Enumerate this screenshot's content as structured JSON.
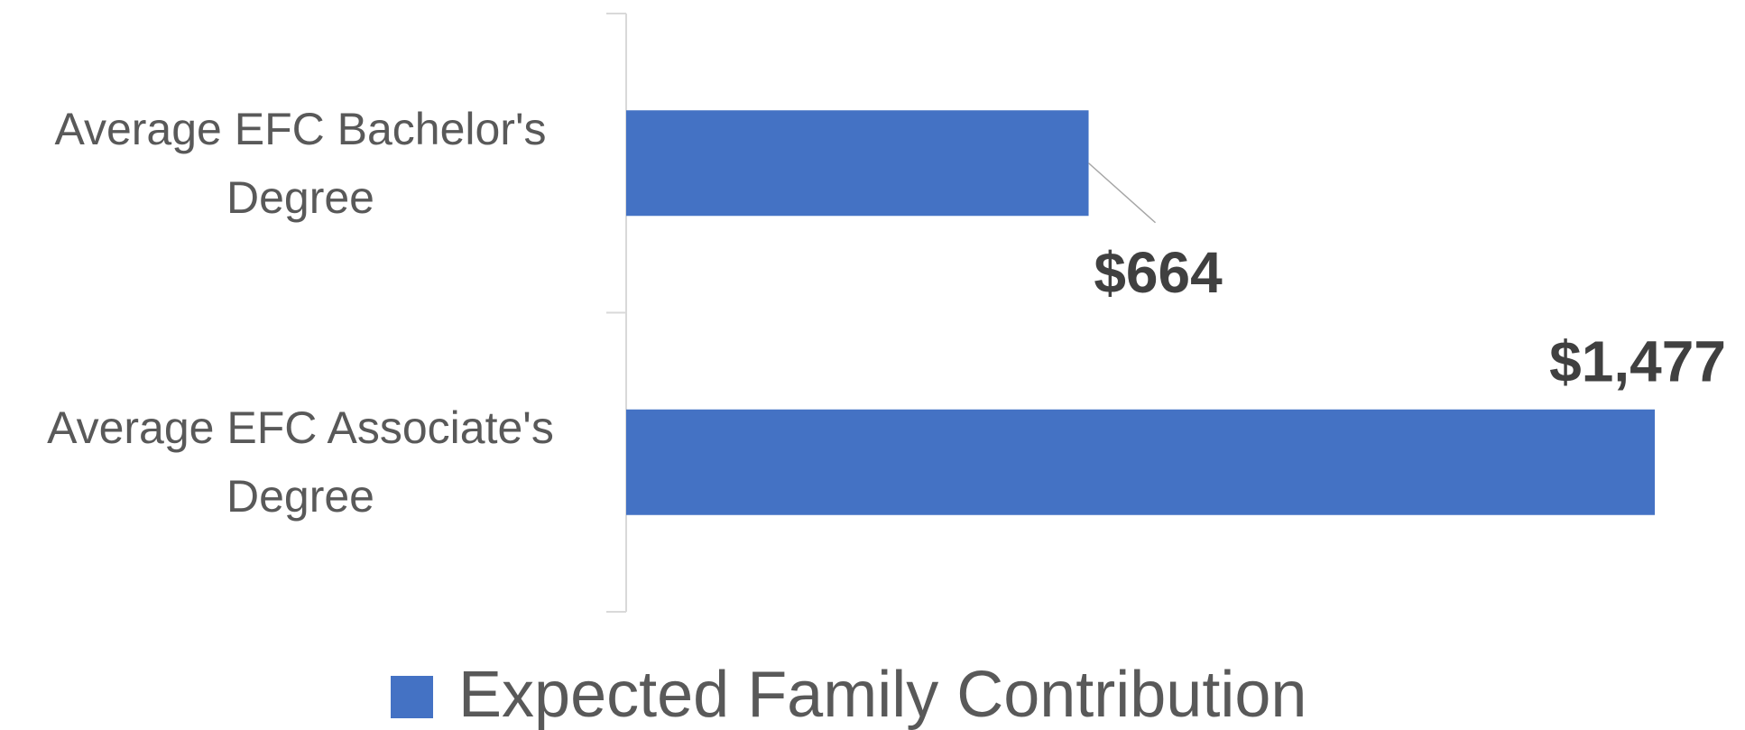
{
  "chart_data": {
    "type": "bar",
    "orientation": "horizontal",
    "categories": [
      "Average EFC Bachelor's Degree",
      "Average EFC Associate's Degree"
    ],
    "series": [
      {
        "name": "Expected Family Contribution",
        "color": "#4472c4",
        "values": [
          664,
          1477
        ],
        "value_labels": [
          "$664",
          "$1,477"
        ]
      }
    ],
    "xlim": [
      0,
      1600
    ],
    "legend": "bottom"
  }
}
